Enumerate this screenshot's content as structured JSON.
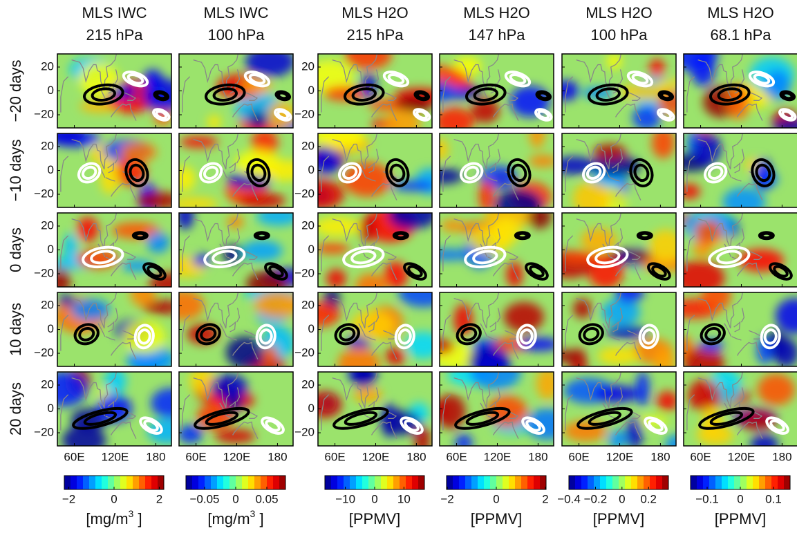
{
  "columns": [
    {
      "title": [
        "MLS IWC",
        "215 hPa"
      ],
      "colorbar": {
        "clim": [
          -2.2,
          2.2
        ],
        "ticks": [
          {
            "value": -2,
            "label": "−2"
          },
          0,
          2
        ],
        "unit": [
          "[mg/m",
          "3",
          " ]"
        ]
      }
    },
    {
      "title": [
        "MLS IWC",
        "100 hPa"
      ],
      "colorbar": {
        "clim": [
          -0.08,
          0.08
        ],
        "ticks": [
          {
            "value": -0.05,
            "label": "−0.05"
          },
          0,
          0.05
        ],
        "unit": [
          "[mg/m",
          "3",
          " ]"
        ]
      }
    },
    {
      "title": [
        "MLS H2O",
        "215 hPa"
      ],
      "colorbar": {
        "clim": [
          -17,
          17
        ],
        "ticks": [
          {
            "value": -10,
            "label": "−10"
          },
          0,
          10
        ],
        "unit": [
          "[PPMV]"
        ]
      }
    },
    {
      "title": [
        "MLS H2O",
        "147 hPa"
      ],
      "colorbar": {
        "clim": [
          -2.03,
          2.03
        ],
        "ticks": [
          {
            "value": -2,
            "label": "−2"
          },
          0,
          2
        ],
        "unit": [
          "[PPMV]"
        ]
      }
    },
    {
      "title": [
        "MLS H2O",
        "100 hPa"
      ],
      "colorbar": {
        "clim": [
          -0.4,
          0.35
        ],
        "ticks": [
          {
            "value": -0.4,
            "label": "−0.4"
          },
          {
            "value": -0.2,
            "label": "−0.2"
          },
          0,
          0.2
        ],
        "unit": [
          "[PPMV]"
        ]
      }
    },
    {
      "title": [
        "MLS H2O",
        "68.1 hPa"
      ],
      "colorbar": {
        "clim": [
          -0.15,
          0.15
        ],
        "ticks": [
          {
            "value": -0.1,
            "label": "−0.1"
          },
          0,
          0.1
        ],
        "unit": [
          "[PPMV]"
        ]
      }
    }
  ],
  "rows": [
    "−20 days",
    "−10 days",
    "0 days",
    "10 days",
    "20 days"
  ],
  "map": {
    "xlim": [
      35,
      203
    ],
    "ylim": [
      -31,
      31
    ],
    "xticks": [
      {
        "value": 60,
        "label": "60E"
      },
      {
        "value": 120,
        "label": "120E"
      },
      180
    ],
    "yticks": [
      20,
      0,
      {
        "value": -20,
        "label": "−20"
      }
    ]
  }
}
